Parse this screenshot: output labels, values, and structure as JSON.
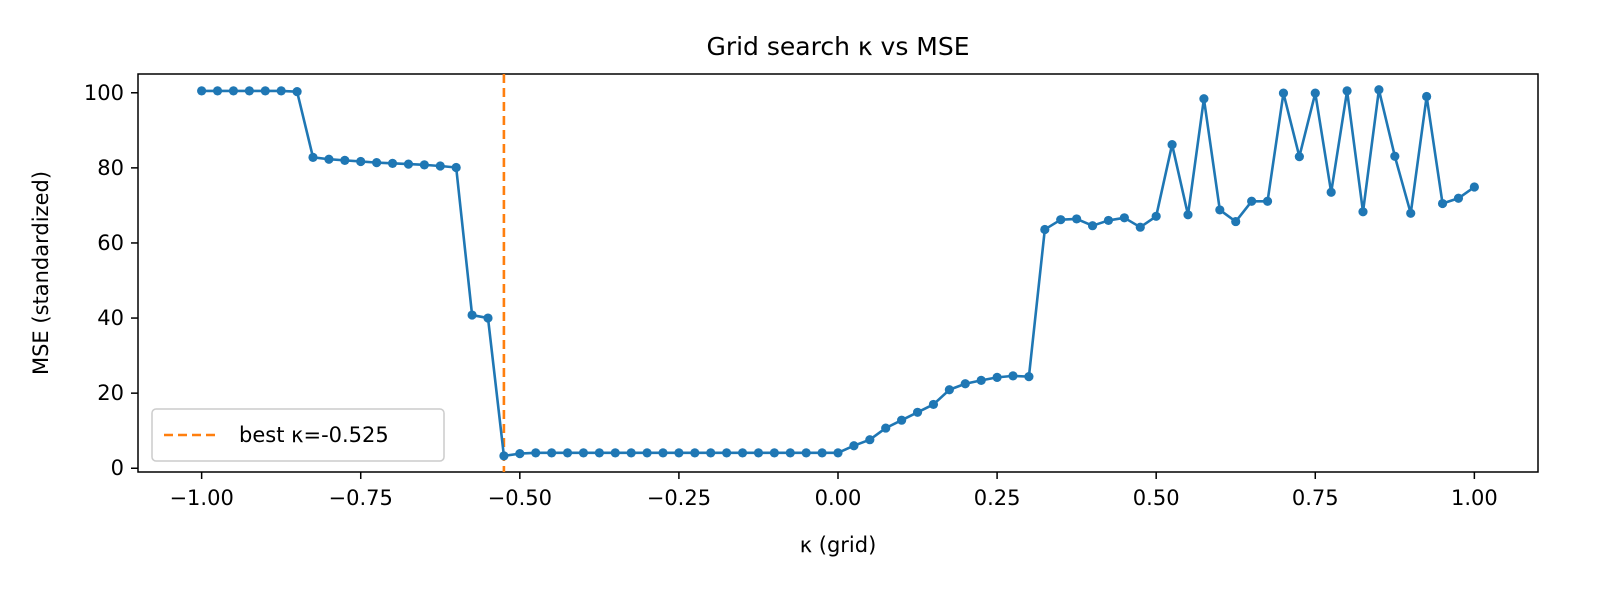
{
  "chart_data": {
    "type": "line",
    "title": "Grid search κ vs MSE",
    "xlabel": "κ (grid)",
    "ylabel": "MSE (standardized)",
    "xlim": [
      -1.1,
      1.1
    ],
    "ylim": [
      -1,
      105
    ],
    "xticks": [
      -1.0,
      -0.75,
      -0.5,
      -0.25,
      0.0,
      0.25,
      0.5,
      0.75,
      1.0
    ],
    "xtick_labels": [
      "−1.00",
      "−0.75",
      "−0.50",
      "−0.25",
      "0.00",
      "0.25",
      "0.50",
      "0.75",
      "1.00"
    ],
    "yticks": [
      0,
      20,
      40,
      60,
      80,
      100
    ],
    "ytick_labels": [
      "0",
      "20",
      "40",
      "60",
      "80",
      "100"
    ],
    "grid": false,
    "legend_position": "lower-left",
    "colors": {
      "series": "#1f77b4",
      "best_line": "#ff7f0e"
    },
    "series": [
      {
        "x": [
          -1.0,
          -0.975,
          -0.95,
          -0.925,
          -0.9,
          -0.875,
          -0.85,
          -0.825,
          -0.8,
          -0.775,
          -0.75,
          -0.725,
          -0.7,
          -0.675,
          -0.65,
          -0.625,
          -0.6,
          -0.575,
          -0.55,
          -0.525,
          -0.5,
          -0.475,
          -0.45,
          -0.425,
          -0.4,
          -0.375,
          -0.35,
          -0.325,
          -0.3,
          -0.275,
          -0.25,
          -0.225,
          -0.2,
          -0.175,
          -0.15,
          -0.125,
          -0.1,
          -0.075,
          -0.05,
          -0.025,
          0.0,
          0.025,
          0.05,
          0.075,
          0.1,
          0.125,
          0.15,
          0.175,
          0.2,
          0.225,
          0.25,
          0.275,
          0.3,
          0.325,
          0.35,
          0.375,
          0.4,
          0.425,
          0.45,
          0.475,
          0.5,
          0.525,
          0.55,
          0.575,
          0.6,
          0.625,
          0.65,
          0.675,
          0.7,
          0.725,
          0.75,
          0.775,
          0.8,
          0.825,
          0.85,
          0.875,
          0.9,
          0.925,
          0.95,
          0.975,
          1.0
        ],
        "y": [
          100.5,
          100.5,
          100.5,
          100.5,
          100.5,
          100.5,
          100.3,
          82.8,
          82.3,
          82.0,
          81.7,
          81.4,
          81.2,
          81.0,
          80.8,
          80.5,
          80.1,
          40.8,
          40.0,
          3.3,
          3.9,
          4.1,
          4.1,
          4.1,
          4.1,
          4.1,
          4.1,
          4.1,
          4.1,
          4.1,
          4.1,
          4.1,
          4.1,
          4.1,
          4.1,
          4.1,
          4.1,
          4.1,
          4.1,
          4.1,
          4.1,
          6.0,
          7.6,
          10.7,
          12.8,
          14.9,
          17.0,
          20.9,
          22.5,
          23.4,
          24.2,
          24.6,
          24.4,
          63.6,
          66.2,
          66.4,
          64.6,
          66.0,
          66.7,
          64.2,
          67.1,
          86.2,
          67.5,
          98.4,
          68.8,
          65.7,
          71.1,
          71.1,
          99.9,
          83.0,
          99.9,
          73.5,
          100.5,
          68.3,
          100.8,
          83.1,
          67.9,
          99.0,
          70.5,
          71.9,
          74.9
        ]
      }
    ],
    "best_line": {
      "x": -0.525,
      "label": "best κ=-0.525"
    }
  }
}
